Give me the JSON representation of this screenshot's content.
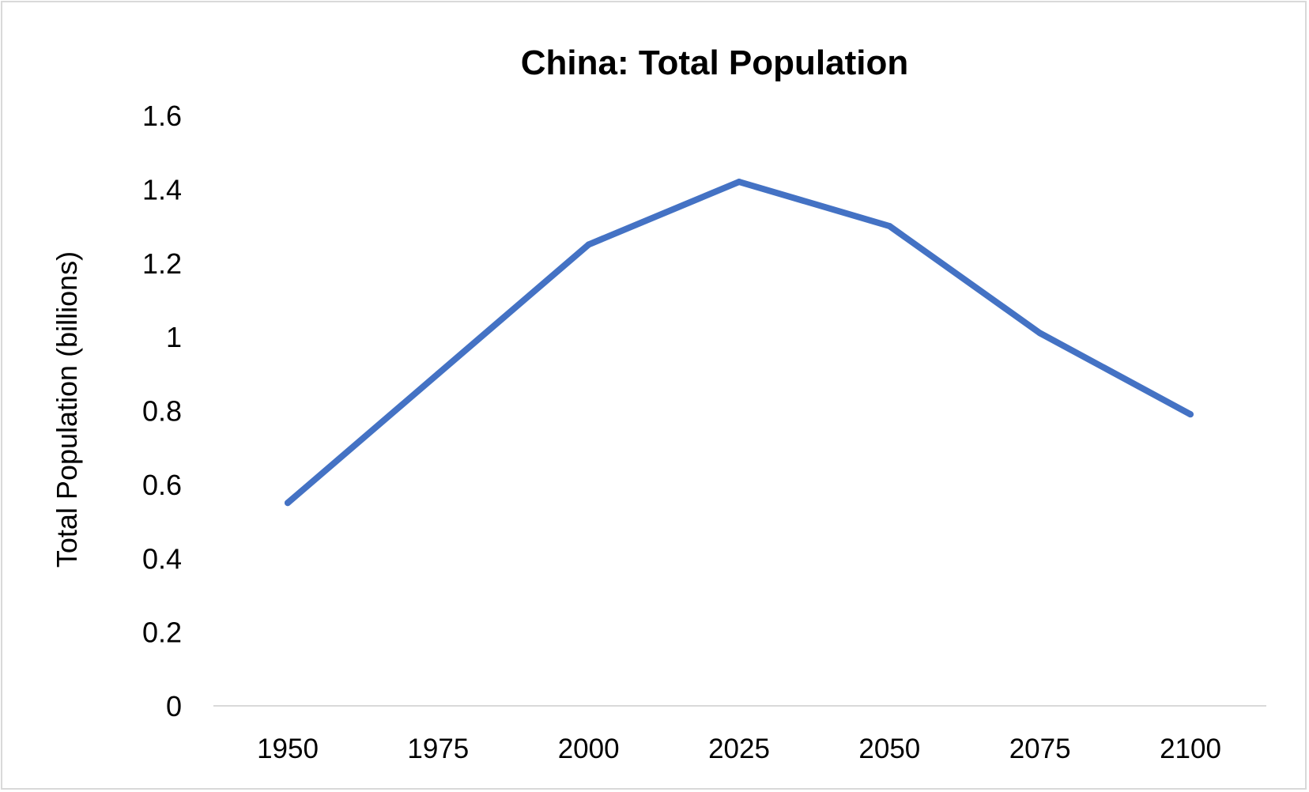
{
  "chart_data": {
    "type": "line",
    "title": "China: Total Population",
    "xlabel": "",
    "ylabel": "Total Population (billions)",
    "categories": [
      "1950",
      "1975",
      "2000",
      "2025",
      "2050",
      "2075",
      "2100"
    ],
    "y_ticks": [
      "0",
      "0.2",
      "0.4",
      "0.6",
      "0.8",
      "1",
      "1.2",
      "1.4",
      "1.6"
    ],
    "ylim": [
      0,
      1.6
    ],
    "grid": false,
    "legend": "none",
    "series": [
      {
        "values": [
          0.55,
          0.9,
          1.25,
          1.42,
          1.3,
          1.01,
          0.79
        ],
        "color": "#4472C4"
      }
    ],
    "axis_line_color": "#d9d9d9"
  }
}
